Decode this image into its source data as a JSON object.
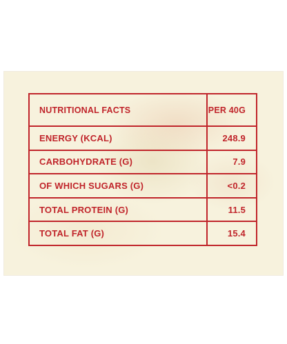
{
  "table": {
    "header": {
      "nutrient": "NUTRITIONAL FACTS",
      "per": "PER 40G"
    },
    "rows": [
      {
        "nutrient": "ENERGY (KCAL)",
        "value": "248.9"
      },
      {
        "nutrient": "CARBOHYDRATE (G)",
        "value": "7.9"
      },
      {
        "nutrient": "OF WHICH SUGARS (G)",
        "value": "<0.2"
      },
      {
        "nutrient": "TOTAL PROTEIN (G)",
        "value": "11.5"
      },
      {
        "nutrient": "TOTAL FAT (G)",
        "value": "15.4"
      }
    ]
  },
  "colors": {
    "text_and_rules": "#c0242a",
    "card_background": "#f7f2dd",
    "page_background": "#ffffff"
  }
}
